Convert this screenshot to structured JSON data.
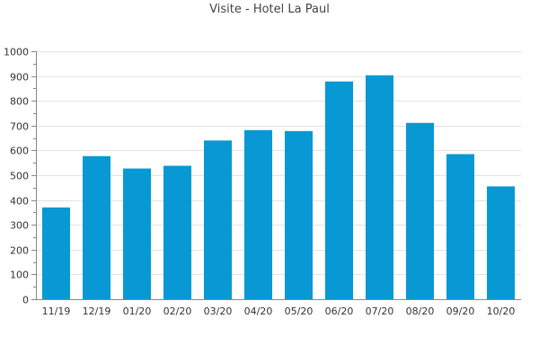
{
  "chart_data": {
    "type": "bar",
    "title": "Visite - Hotel La Paul",
    "categories": [
      "11/19",
      "12/19",
      "01/20",
      "02/20",
      "03/20",
      "04/20",
      "05/20",
      "06/20",
      "07/20",
      "08/20",
      "09/20",
      "10/20"
    ],
    "values": [
      370,
      577,
      527,
      538,
      640,
      682,
      678,
      878,
      903,
      711,
      585,
      455
    ],
    "ylim": [
      0,
      1000
    ],
    "yticks": [
      0,
      100,
      200,
      300,
      400,
      500,
      600,
      700,
      800,
      900,
      1000
    ],
    "grid": true,
    "legend": "none",
    "colors": {
      "bar": "#0899d4",
      "grid": "#e3e3e3",
      "axis": "#888888",
      "text": "#333333",
      "title": "#444444"
    }
  }
}
